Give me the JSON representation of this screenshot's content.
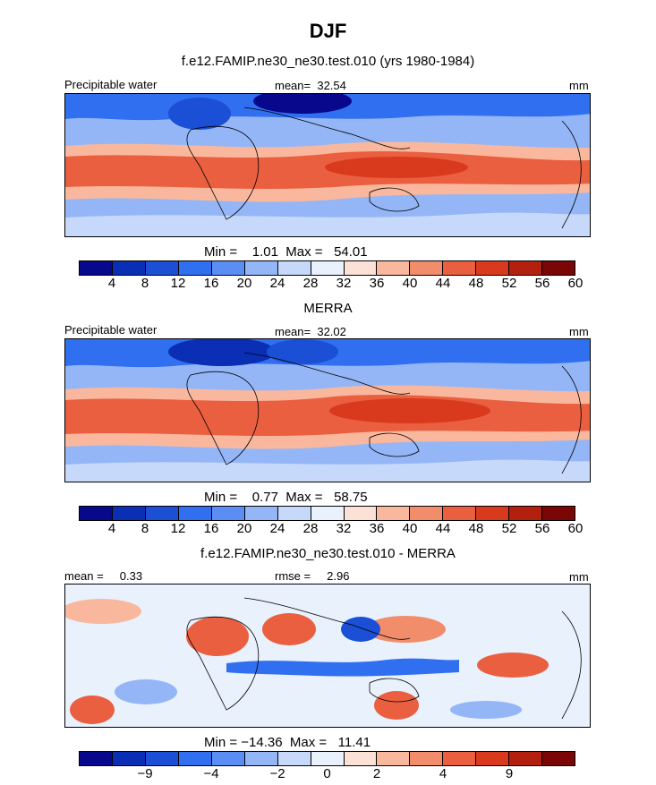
{
  "title": "DJF",
  "colors": {
    "scale": [
      "#08088c",
      "#0a2fb5",
      "#1a4fd6",
      "#2f6ff0",
      "#5b8ef5",
      "#94b6f7",
      "#c6d9fb",
      "#e9f1fd",
      "#fce2d6",
      "#f9b89d",
      "#f28d6c",
      "#ea5f3f",
      "#d93a1e",
      "#b4200e",
      "#7a0606"
    ]
  },
  "chart_data": [
    {
      "type": "heatmap",
      "subtitle": "f.e12.FAMIP.ne30_ne30.test.010 (yrs 1980-1984)",
      "left_label": "Precipitable water",
      "center_label": "mean=  32.54",
      "units": "mm",
      "min_max_text": "Min =    1.01  Max =   54.01",
      "colorbar_ticks": [
        "4",
        "8",
        "12",
        "16",
        "20",
        "24",
        "28",
        "32",
        "36",
        "40",
        "44",
        "48",
        "52",
        "56",
        "60"
      ]
    },
    {
      "type": "heatmap",
      "subtitle": "MERRA",
      "left_label": "Precipitable water",
      "center_label": "mean=  32.02",
      "units": "mm",
      "min_max_text": "Min =    0.77  Max =   58.75",
      "colorbar_ticks": [
        "4",
        "8",
        "12",
        "16",
        "20",
        "24",
        "28",
        "32",
        "36",
        "40",
        "44",
        "48",
        "52",
        "56",
        "60"
      ]
    },
    {
      "type": "heatmap",
      "subtitle": "f.e12.FAMIP.ne30_ne30.test.010 - MERRA",
      "left_label": "mean =     0.33",
      "center_label": "rmse =     2.96",
      "units": "mm",
      "min_max_text": "Min = −14.36  Max =   11.41",
      "colorbar_ticks": [
        "−9",
        "−4",
        "−2",
        "0",
        "2",
        "4",
        "9"
      ]
    }
  ]
}
